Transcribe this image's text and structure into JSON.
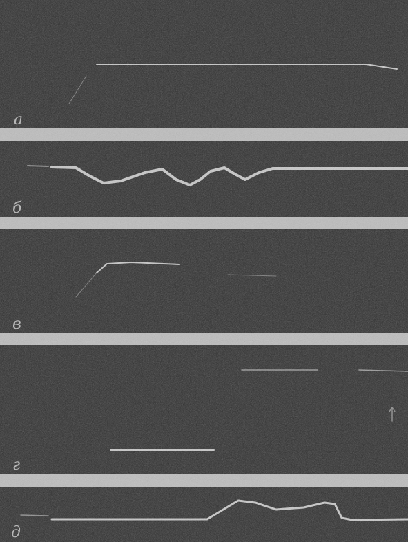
{
  "panels": [
    {
      "label": "а"
    },
    {
      "label": "б"
    },
    {
      "label": "в"
    },
    {
      "label": "г"
    },
    {
      "label": "д"
    }
  ]
}
